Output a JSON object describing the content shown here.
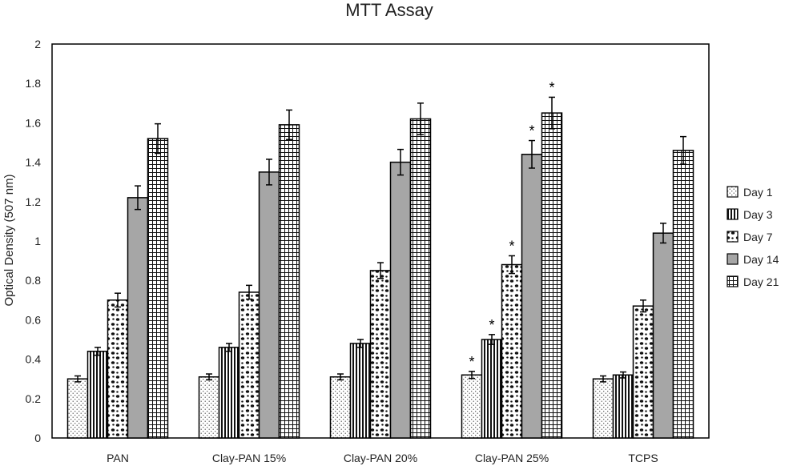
{
  "chart_data": {
    "type": "bar",
    "title": "MTT Assay",
    "xlabel": "",
    "ylabel": "Optical Density (507 nm)",
    "ylim": [
      0,
      2
    ],
    "yticks": [
      "0",
      "0.2",
      "0.4",
      "0.6",
      "0.8",
      "1",
      "1.2",
      "1.4",
      "1.6",
      "1.8",
      "2"
    ],
    "grid": false,
    "legend_position": "right",
    "categories": [
      "PAN",
      "Clay-PAN 15%",
      "Clay-PAN 20%",
      "Clay-PAN 25%",
      "TCPS"
    ],
    "series": [
      {
        "name": "Day 1",
        "pattern": "dots-fine",
        "values": [
          0.3,
          0.31,
          0.31,
          0.32,
          0.3
        ],
        "errors": [
          0.015,
          0.015,
          0.015,
          0.018,
          0.015
        ]
      },
      {
        "name": "Day 3",
        "pattern": "vertical-stripes",
        "values": [
          0.44,
          0.46,
          0.48,
          0.5,
          0.32
        ],
        "errors": [
          0.02,
          0.02,
          0.02,
          0.025,
          0.015
        ]
      },
      {
        "name": "Day 7",
        "pattern": "confetti",
        "values": [
          0.7,
          0.74,
          0.85,
          0.88,
          0.67
        ],
        "errors": [
          0.035,
          0.035,
          0.04,
          0.045,
          0.03
        ]
      },
      {
        "name": "Day 14",
        "pattern": "solid-gray",
        "values": [
          1.22,
          1.35,
          1.4,
          1.44,
          1.04
        ],
        "errors": [
          0.06,
          0.065,
          0.065,
          0.07,
          0.05
        ]
      },
      {
        "name": "Day 21",
        "pattern": "grid",
        "values": [
          1.52,
          1.59,
          1.62,
          1.65,
          1.46
        ],
        "errors": [
          0.075,
          0.075,
          0.08,
          0.08,
          0.07
        ]
      }
    ],
    "annotations": [
      {
        "text": "*",
        "category": "Clay-PAN 25%",
        "series": "Day 1"
      },
      {
        "text": "*",
        "category": "Clay-PAN 25%",
        "series": "Day 3"
      },
      {
        "text": "*",
        "category": "Clay-PAN 25%",
        "series": "Day 7"
      },
      {
        "text": "*",
        "category": "Clay-PAN 25%",
        "series": "Day 14"
      },
      {
        "text": "*",
        "category": "Clay-PAN 25%",
        "series": "Day 21"
      }
    ]
  }
}
